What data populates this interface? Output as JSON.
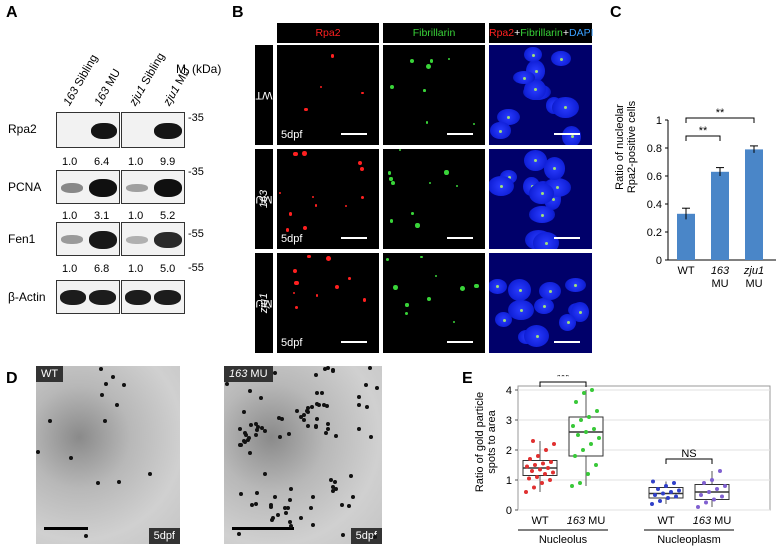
{
  "panels": {
    "A": "A",
    "B": "B",
    "C": "C",
    "D": "D",
    "E": "E"
  },
  "panelA": {
    "lanes": [
      {
        "italic": "163",
        "rest": " Sibling"
      },
      {
        "italic": "163",
        "rest": " MU"
      },
      {
        "italic": "zju1",
        "rest": " Sibling"
      },
      {
        "italic": "zju1",
        "rest": " MU"
      }
    ],
    "mr_label": "M",
    "mr_sub": "r",
    "mr_unit": " (kDa)",
    "rows": [
      {
        "label": "Rpa2",
        "marker": "35",
        "values": [
          "1.0",
          "6.4",
          "1.0",
          "9.9"
        ]
      },
      {
        "label": "PCNA",
        "marker": "35",
        "values": [
          "1.0",
          "3.1",
          "1.0",
          "5.2"
        ]
      },
      {
        "label": "Fen1",
        "marker": "55",
        "values": [
          "1.0",
          "6.8",
          "1.0",
          "5.0"
        ]
      },
      {
        "label": "β-Actin",
        "marker": "55",
        "values": []
      }
    ]
  },
  "panelB": {
    "headers": {
      "rpa2": "Rpa2",
      "fib": "Fibrillarin",
      "merge_rpa2": "Rpa2",
      "plus1": "+",
      "merge_fib": "Fibrillarin",
      "plus2": "+",
      "merge_dapi": "DAPI"
    },
    "rows": [
      {
        "italic": "",
        "rest": "WT"
      },
      {
        "italic": "163",
        "rest": " MU"
      },
      {
        "italic": "zju1",
        "rest": " MU"
      }
    ],
    "stage": "5dpf",
    "colors": {
      "red": "#ff2020",
      "green": "#39d439",
      "blue": "#3aa0ff"
    }
  },
  "chart_data": [
    {
      "type": "bar",
      "panel": "C",
      "categories": [
        "WT",
        "163 MU",
        "zju1 MU"
      ],
      "category_labels": [
        {
          "italic": "",
          "rest": "WT"
        },
        {
          "italic": "163",
          "rest": "MU"
        },
        {
          "italic": "zju1",
          "rest": "MU"
        }
      ],
      "values": [
        0.33,
        0.63,
        0.79
      ],
      "errors": [
        0.04,
        0.03,
        0.025
      ],
      "ylabel_line1": "Ratio of nucleolar",
      "ylabel_line2": "Rpa2-positive cells",
      "ylim": [
        0,
        1
      ],
      "yticks": [
        "0",
        "0.2",
        "0.4",
        "0.6",
        "0.8",
        "1"
      ],
      "significance": [
        {
          "from": 0,
          "to": 1,
          "label": "**"
        },
        {
          "from": 0,
          "to": 2,
          "label": "**"
        }
      ],
      "bar_color": "#4a86c8"
    },
    {
      "type": "box",
      "panel": "E",
      "ylabel_line1": "Ratio of gold particle",
      "ylabel_line2": "spots to area",
      "ylim": [
        0,
        4
      ],
      "yticks": [
        "0",
        "1",
        "2",
        "3",
        "4"
      ],
      "groups": [
        {
          "label": "Nucleolus",
          "categories": [
            {
              "italic": "",
              "rest": "WT",
              "color": "#e03030",
              "q1": 1.15,
              "median": 1.4,
              "q3": 1.65,
              "whisker_low": 0.6,
              "whisker_high": 2.3,
              "points": [
                0.6,
                0.75,
                0.9,
                1.0,
                1.05,
                1.1,
                1.2,
                1.25,
                1.3,
                1.35,
                1.4,
                1.45,
                1.5,
                1.55,
                1.6,
                1.7,
                1.8,
                2.0,
                2.2,
                2.3
              ]
            },
            {
              "italic": "163",
              "rest": " MU",
              "color": "#38c838",
              "q1": 1.8,
              "median": 2.6,
              "q3": 3.1,
              "whisker_low": 0.8,
              "whisker_high": 4.0,
              "points": [
                0.8,
                0.9,
                1.2,
                1.5,
                1.8,
                2.0,
                2.2,
                2.4,
                2.5,
                2.6,
                2.7,
                2.8,
                3.0,
                3.1,
                3.3,
                3.6,
                3.9,
                4.0
              ]
            }
          ]
        },
        {
          "label": "Nucleoplasm",
          "categories": [
            {
              "italic": "",
              "rest": "WT",
              "color": "#3040c8",
              "q1": 0.4,
              "median": 0.55,
              "q3": 0.75,
              "whisker_low": 0.2,
              "whisker_high": 0.95,
              "points": [
                0.2,
                0.3,
                0.4,
                0.45,
                0.5,
                0.55,
                0.6,
                0.65,
                0.7,
                0.8,
                0.9,
                0.95
              ]
            },
            {
              "italic": "163",
              "rest": " MU",
              "color": "#8060d0",
              "q1": 0.35,
              "median": 0.6,
              "q3": 0.85,
              "whisker_low": 0.1,
              "whisker_high": 1.3,
              "points": [
                0.1,
                0.25,
                0.35,
                0.45,
                0.5,
                0.6,
                0.7,
                0.8,
                0.9,
                1.0,
                1.3
              ]
            }
          ]
        }
      ],
      "significance": [
        {
          "group": 0,
          "label": "***"
        },
        {
          "group": 1,
          "label": "NS"
        }
      ]
    }
  ],
  "panelD": {
    "wt": "WT",
    "mu_italic": "163",
    "mu_rest": " MU",
    "stage": "5dpf"
  }
}
